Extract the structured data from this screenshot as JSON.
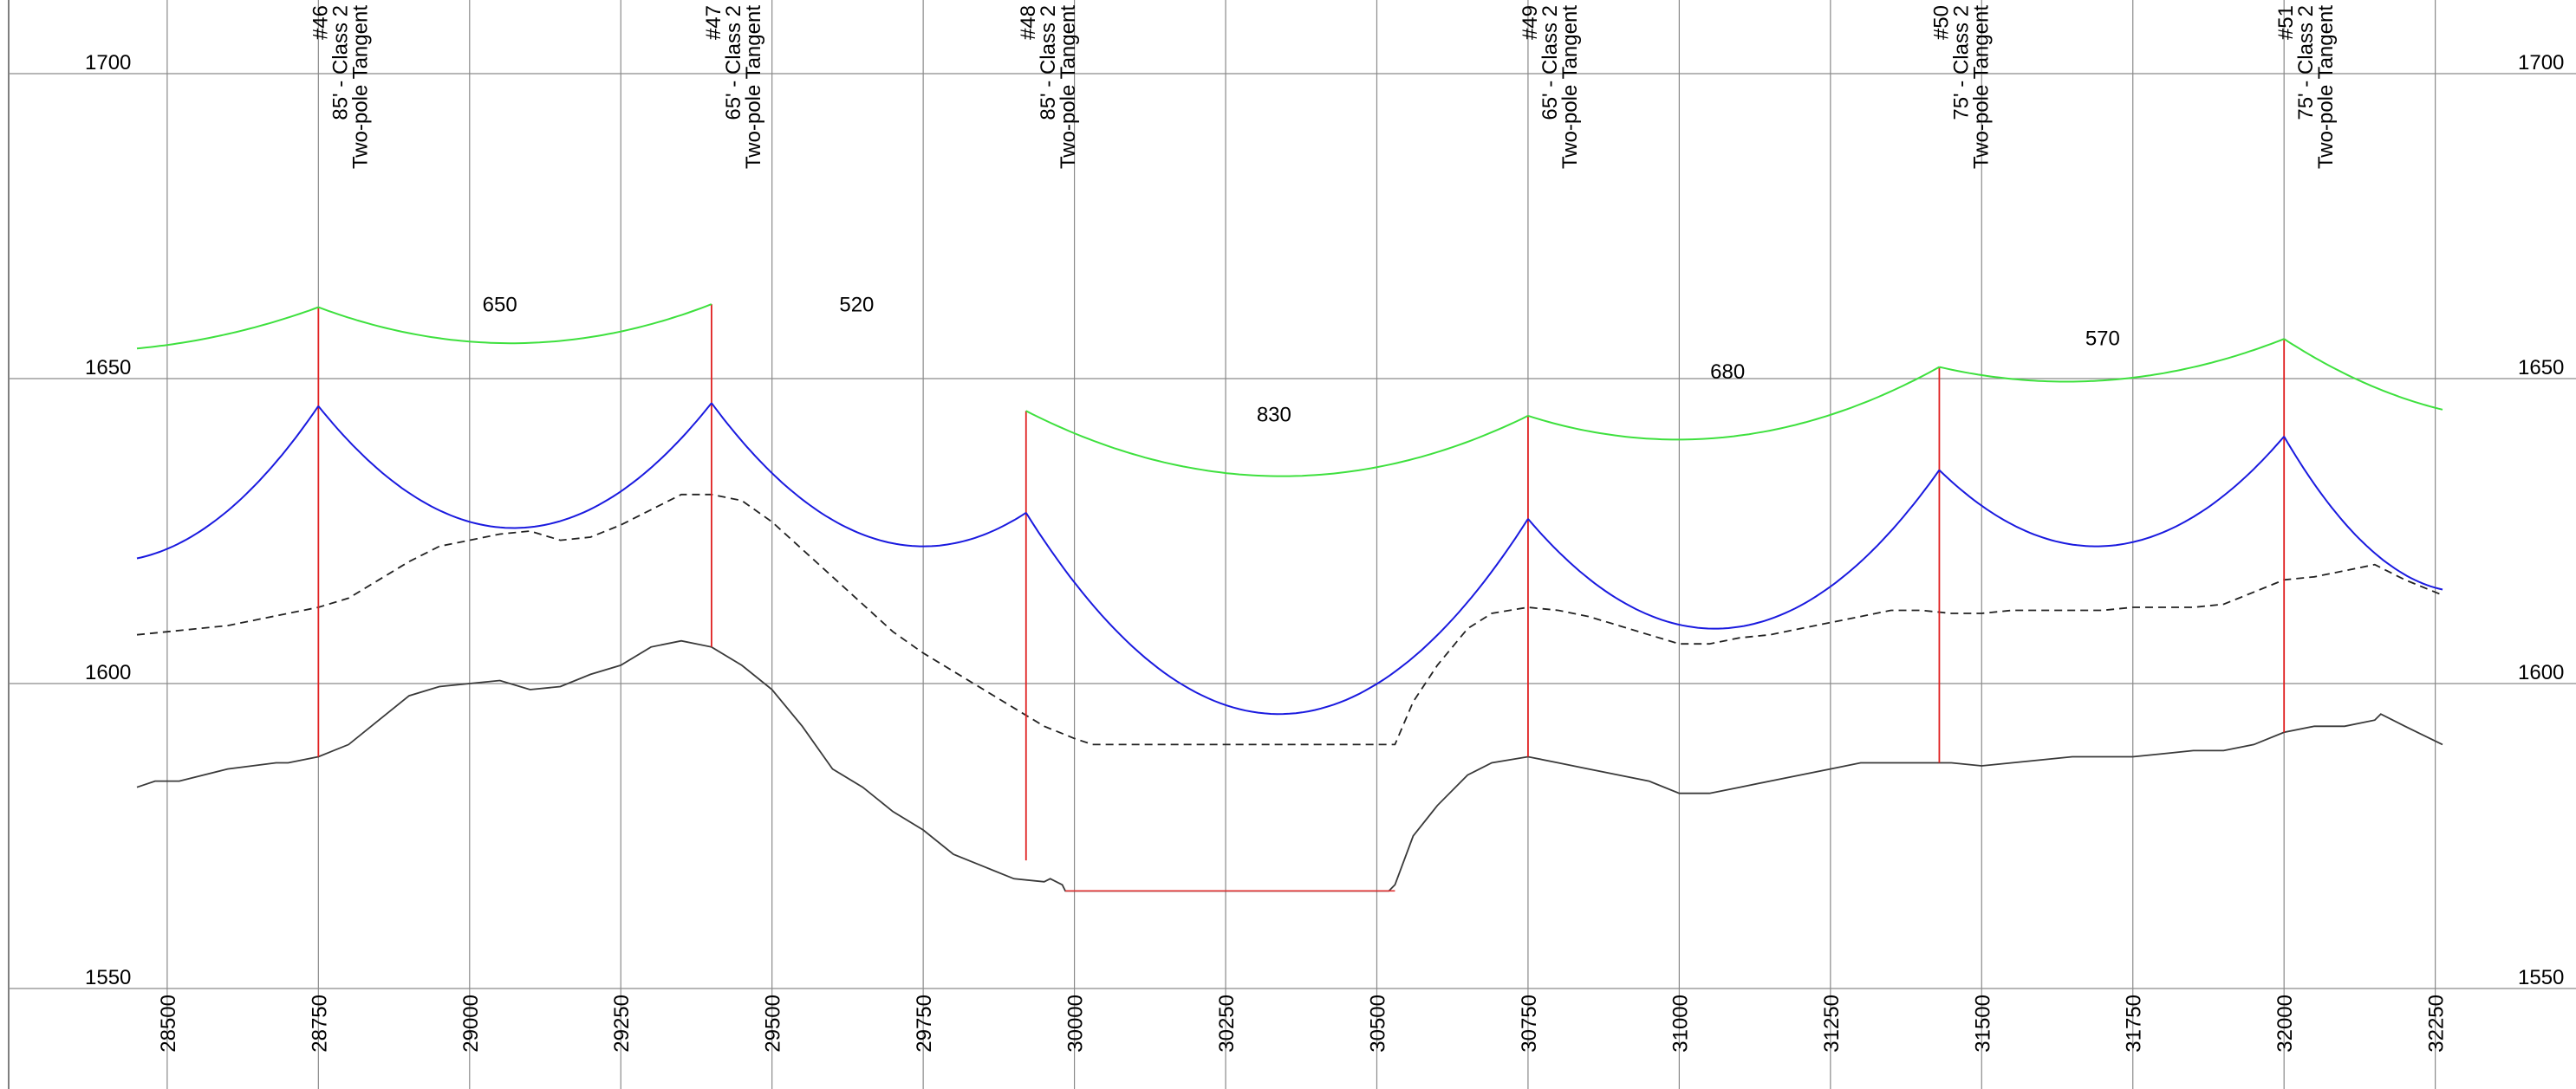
{
  "chart_data": {
    "type": "line",
    "title": "",
    "xlabel": "",
    "ylabel": "",
    "xlim": [
      28450,
      32262
    ],
    "ylim": [
      1550,
      1700
    ],
    "x_ticks": [
      "28500",
      "28750",
      "29000",
      "29250",
      "29500",
      "29750",
      "30000",
      "30250",
      "30500",
      "30750",
      "31000",
      "31250",
      "31500",
      "31750",
      "32000",
      "32250"
    ],
    "y_ticks": [
      "1550",
      "1600",
      "1650",
      "1700"
    ],
    "grid": true,
    "poles": [
      {
        "x": 28750,
        "num": "#46",
        "size": "85' - Class 2",
        "type": "Two-pole Tangent",
        "base": 1588,
        "attach": 1645.5,
        "top": 1661.7
      },
      {
        "x": 29400,
        "num": "#47",
        "size": "65' - Class 2",
        "type": "Two-pole Tangent",
        "base": 1606,
        "attach": 1646.0,
        "top": 1662.2
      },
      {
        "x": 29920,
        "num": "#48",
        "size": "85' - Class 2",
        "type": "Two-pole Tangent",
        "base": 1571,
        "attach": 1628.0,
        "top": 1644.7
      },
      {
        "x": 30750,
        "num": "#49",
        "size": "65' - Class 2",
        "type": "Two-pole Tangent",
        "base": 1588,
        "attach": 1627.0,
        "top": 1643.9
      },
      {
        "x": 31430,
        "num": "#50",
        "size": "75' - Class 2",
        "type": "Two-pole Tangent",
        "base": 1587,
        "attach": 1635.0,
        "top": 1651.9
      },
      {
        "x": 32000,
        "num": "#51",
        "size": "75' - Class 2",
        "type": "Two-pole Tangent",
        "base": 1592,
        "attach": 1640.5,
        "top": 1656.5
      }
    ],
    "spans": [
      {
        "label": "650",
        "from": 28750,
        "to": 29400,
        "conductor_low": 1625.5,
        "clearance_low": 1655.8
      },
      {
        "label": "520",
        "from": 29400,
        "to": 29920,
        "conductor_low": 1622.5,
        "clearance_low": 1645.5
      },
      {
        "label": "830",
        "from": 29920,
        "to": 30750,
        "conductor_low": 1595.0,
        "clearance_low": 1634.0
      },
      {
        "label": "680",
        "from": 30750,
        "to": 31430,
        "conductor_low": 1609.0,
        "clearance_low": 1640.0
      },
      {
        "label": "570",
        "from": 31430,
        "to": 32000,
        "conductor_low": 1622.5,
        "clearance_low": 1649.5
      }
    ],
    "series": [
      {
        "style": "solid",
        "x": [
          28450,
          28480,
          28520,
          28600,
          28680,
          28700,
          28750,
          28800,
          28850,
          28900,
          28950,
          29000,
          29050,
          29100,
          29150,
          29200,
          29250,
          29300,
          29350,
          29400,
          29450,
          29500,
          29550,
          29600,
          29650,
          29700,
          29750,
          29800,
          29850,
          29900,
          29950,
          29960,
          29980,
          29985,
          30010,
          30180,
          30520,
          30530,
          30560,
          30600,
          30650,
          30690,
          30750,
          30800,
          30850,
          30900,
          30950,
          31000,
          31050,
          31100,
          31150,
          31200,
          31250,
          31300,
          31350,
          31400,
          31450,
          31500,
          31550,
          31600,
          31650,
          31700,
          31750,
          31800,
          31850,
          31900,
          31950,
          32000,
          32050,
          32100,
          32150,
          32160,
          32200,
          32262
        ],
        "y": [
          1583,
          1584,
          1584,
          1586,
          1587,
          1587,
          1588,
          1590,
          1594,
          1598,
          1599.5,
          1600,
          1600.5,
          1599,
          1599.5,
          1601.5,
          1603,
          1606,
          1607,
          1606,
          1603,
          1599,
          1593,
          1586,
          1583,
          1579,
          1576,
          1572,
          1570,
          1568,
          1567.5,
          1568,
          1567,
          1566,
          1566,
          1566,
          1566,
          1567,
          1575,
          1580,
          1585,
          1587,
          1588,
          1587,
          1586,
          1585,
          1584,
          1582,
          1582,
          1583,
          1584,
          1585,
          1586,
          1587,
          1587,
          1587,
          1587,
          1586.5,
          1587,
          1587.5,
          1588,
          1588,
          1588,
          1588.5,
          1589,
          1589,
          1590,
          1592,
          1593,
          1593,
          1594,
          1595,
          1593,
          1590
        ]
      },
      {
        "style": "dashed",
        "x": [
          28450,
          28500,
          28600,
          28700,
          28750,
          28800,
          28850,
          28900,
          28950,
          29000,
          29050,
          29100,
          29150,
          29200,
          29250,
          29300,
          29350,
          29400,
          29450,
          29500,
          29550,
          29600,
          29650,
          29700,
          29750,
          29800,
          29850,
          29900,
          29950,
          30000,
          30030,
          30200,
          30400,
          30530,
          30560,
          30600,
          30650,
          30690,
          30750,
          30800,
          30850,
          30900,
          30950,
          31000,
          31050,
          31100,
          31150,
          31200,
          31250,
          31300,
          31350,
          31400,
          31450,
          31500,
          31550,
          31600,
          31650,
          31700,
          31750,
          31800,
          31850,
          31900,
          31950,
          32000,
          32050,
          32100,
          32150,
          32200,
          32262
        ],
        "y": [
          1608,
          1608.5,
          1609.5,
          1611.5,
          1612.5,
          1614,
          1617,
          1620,
          1622.5,
          1623.5,
          1624.5,
          1625,
          1623.5,
          1624,
          1626,
          1628.5,
          1631,
          1631,
          1630,
          1626.5,
          1622,
          1617.5,
          1613,
          1608.5,
          1605,
          1602,
          1599,
          1596,
          1593,
          1591,
          1590,
          1590,
          1590,
          1590,
          1597,
          1603,
          1609,
          1611.5,
          1612.5,
          1612,
          1611,
          1609.5,
          1608,
          1606.5,
          1606.5,
          1607.5,
          1608,
          1609,
          1610,
          1611,
          1612,
          1612,
          1611.5,
          1611.5,
          1612,
          1612,
          1612,
          1612,
          1612.5,
          1612.5,
          1612.5,
          1613,
          1615,
          1617,
          1617.5,
          1618.5,
          1619.5,
          1617,
          1614.5
        ]
      }
    ]
  }
}
